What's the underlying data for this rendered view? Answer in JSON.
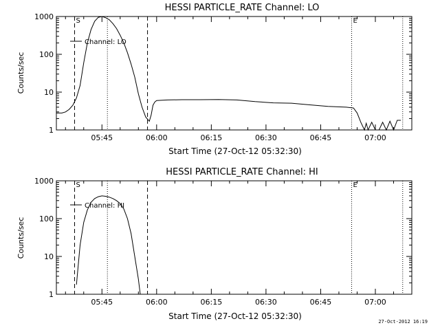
{
  "chart_data": [
    {
      "type": "line",
      "title": "HESSI PARTICLE_RATE Channel: LO",
      "xlabel": "Start Time (27-Oct-12 05:32:30)",
      "ylabel": "Counts/sec",
      "yscale": "log",
      "ylim": [
        1,
        1000
      ],
      "xlim": [
        "05:32:30",
        "07:10:00"
      ],
      "x_ticks": [
        "05:45",
        "06:00",
        "06:15",
        "06:30",
        "06:45",
        "07:00"
      ],
      "y_ticks": [
        "1",
        "10",
        "100",
        "1000"
      ],
      "legend": {
        "label": "Channel: LO",
        "position": "top-left"
      },
      "markers": [
        {
          "label": "S",
          "time": "05:37:30",
          "style": "dashed"
        },
        {
          "label": "",
          "time": "05:46:30",
          "style": "dotted"
        },
        {
          "label": "",
          "time": "05:57:30",
          "style": "dashed"
        },
        {
          "label": "E",
          "time": "06:53:30",
          "style": "dotted"
        },
        {
          "label": "",
          "time": "07:07:30",
          "style": "dotted"
        }
      ],
      "series": [
        {
          "name": "Channel: LO",
          "points": [
            [
              "05:32:30",
              2.8
            ],
            [
              "05:34:00",
              2.8
            ],
            [
              "05:35:00",
              3.0
            ],
            [
              "05:36:00",
              3.5
            ],
            [
              "05:37:00",
              4.5
            ],
            [
              "05:38:00",
              7.0
            ],
            [
              "05:39:00",
              15
            ],
            [
              "05:40:00",
              60
            ],
            [
              "05:41:00",
              200
            ],
            [
              "05:42:00",
              450
            ],
            [
              "05:43:00",
              750
            ],
            [
              "05:44:00",
              950
            ],
            [
              "05:45:00",
              1000
            ],
            [
              "05:46:00",
              930
            ],
            [
              "05:47:00",
              820
            ],
            [
              "05:48:00",
              650
            ],
            [
              "05:49:00",
              480
            ],
            [
              "05:50:00",
              320
            ],
            [
              "05:51:00",
              200
            ],
            [
              "05:52:00",
              110
            ],
            [
              "05:53:00",
              55
            ],
            [
              "05:54:00",
              25
            ],
            [
              "05:55:00",
              9
            ],
            [
              "05:56:00",
              4
            ],
            [
              "05:57:00",
              2.2
            ],
            [
              "05:58:00",
              1.7
            ],
            [
              "05:58:30",
              2.5
            ],
            [
              "05:59:00",
              4.5
            ],
            [
              "05:59:30",
              5.5
            ],
            [
              "06:00:00",
              6
            ],
            [
              "06:03:00",
              6.2
            ],
            [
              "06:07:00",
              6.3
            ],
            [
              "06:12:00",
              6.3
            ],
            [
              "06:17:00",
              6.4
            ],
            [
              "06:22:00",
              6.2
            ],
            [
              "06:27:00",
              5.6
            ],
            [
              "06:32:00",
              5.2
            ],
            [
              "06:37:00",
              5.1
            ],
            [
              "06:42:00",
              4.6
            ],
            [
              "06:47:00",
              4.2
            ],
            [
              "06:52:00",
              4.0
            ],
            [
              "06:54:00",
              3.8
            ],
            [
              "06:55:00",
              2.8
            ],
            [
              "06:56:00",
              1.6
            ],
            [
              "06:57:00",
              1.0
            ],
            [
              "06:57:30",
              1.5
            ],
            [
              "06:58:00",
              1.0
            ],
            [
              "06:59:00",
              1.6
            ],
            [
              "07:00:00",
              1.0
            ],
            [
              "07:01:00",
              1.0
            ],
            [
              "07:02:00",
              1.6
            ],
            [
              "07:03:00",
              1.0
            ],
            [
              "07:04:00",
              1.7
            ],
            [
              "07:05:00",
              1.0
            ],
            [
              "07:06:00",
              1.8
            ],
            [
              "07:07:00",
              1.8
            ]
          ]
        }
      ]
    },
    {
      "type": "line",
      "title": "HESSI PARTICLE_RATE Channel: HI",
      "xlabel": "Start Time (27-Oct-12 05:32:30)",
      "ylabel": "Counts/sec",
      "yscale": "log",
      "ylim": [
        1,
        1000
      ],
      "xlim": [
        "05:32:30",
        "07:10:00"
      ],
      "x_ticks": [
        "05:45",
        "06:00",
        "06:15",
        "06:30",
        "06:45",
        "07:00"
      ],
      "y_ticks": [
        "1",
        "10",
        "100",
        "1000"
      ],
      "legend": {
        "label": "Channel: HI",
        "position": "top-left"
      },
      "markers": [
        {
          "label": "S",
          "time": "05:37:30",
          "style": "dashed"
        },
        {
          "label": "",
          "time": "05:46:30",
          "style": "dotted"
        },
        {
          "label": "",
          "time": "05:57:30",
          "style": "dashed"
        },
        {
          "label": "E",
          "time": "06:53:30",
          "style": "dotted"
        },
        {
          "label": "",
          "time": "07:07:30",
          "style": "dotted"
        }
      ],
      "series": [
        {
          "name": "Channel: HI",
          "points": [
            [
              "05:38:00",
              1.8
            ],
            [
              "05:39:00",
              20
            ],
            [
              "05:40:00",
              80
            ],
            [
              "05:41:00",
              170
            ],
            [
              "05:42:00",
              270
            ],
            [
              "05:43:00",
              340
            ],
            [
              "05:44:00",
              380
            ],
            [
              "05:45:00",
              400
            ],
            [
              "05:46:00",
              390
            ],
            [
              "05:47:00",
              370
            ],
            [
              "05:48:00",
              340
            ],
            [
              "05:49:00",
              300
            ],
            [
              "05:50:00",
              250
            ],
            [
              "05:51:00",
              180
            ],
            [
              "05:52:00",
              100
            ],
            [
              "05:53:00",
              40
            ],
            [
              "05:54:00",
              10
            ],
            [
              "05:55:00",
              2.5
            ],
            [
              "05:55:30",
              1.0
            ]
          ]
        }
      ]
    }
  ],
  "footer": {
    "timestamp": "27-Oct-2012 16:19"
  }
}
